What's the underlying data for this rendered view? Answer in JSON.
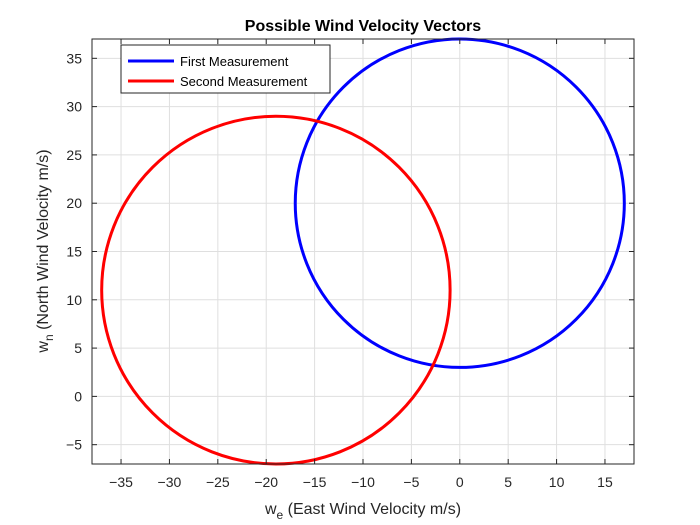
{
  "chart_data": {
    "type": "line",
    "title": "Possible Wind Velocity Vectors",
    "xlabel": {
      "main": "w",
      "sub": "e",
      "rest": " (East Wind Velocity m/s)"
    },
    "ylabel": {
      "main": "w",
      "sub": "n",
      "rest": " (North Wind Velocity m/s)"
    },
    "xlim": [
      -38,
      18
    ],
    "ylim": [
      -7,
      37
    ],
    "xticks": [
      -35,
      -30,
      -25,
      -20,
      -15,
      -10,
      -5,
      0,
      5,
      10,
      15
    ],
    "yticks": [
      -5,
      0,
      5,
      10,
      15,
      20,
      25,
      30,
      35
    ],
    "grid": true,
    "legend_position": "top-left",
    "series": [
      {
        "name": "First Measurement",
        "color": "#0000ff",
        "center": [
          0,
          20
        ],
        "radius": 17
      },
      {
        "name": "Second Measurement",
        "color": "#ff0000",
        "center": [
          -19,
          11
        ],
        "radius": 18
      }
    ]
  }
}
